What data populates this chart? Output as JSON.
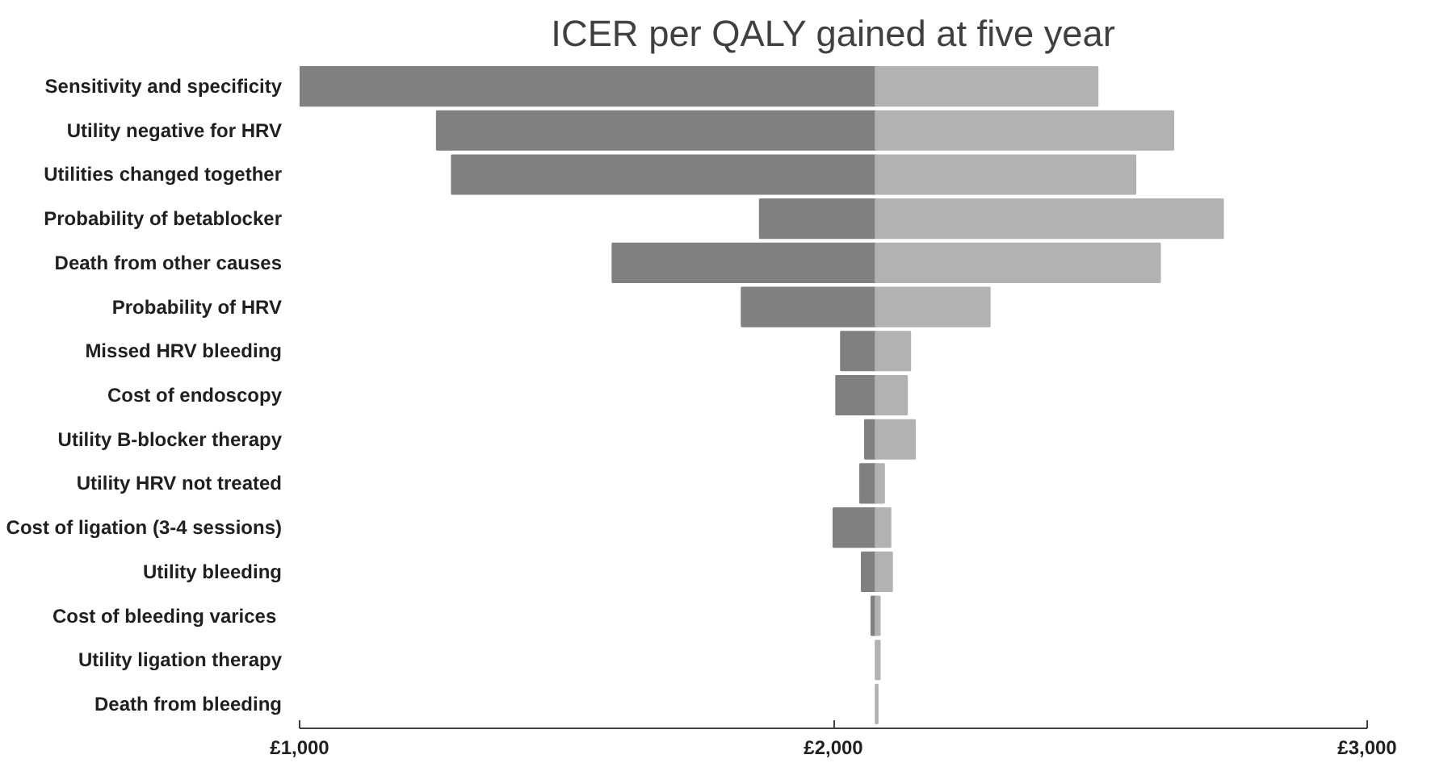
{
  "chart_data": {
    "type": "bar",
    "orientation": "horizontal",
    "title": "ICER per QALY gained at five year",
    "categories": [
      "Sensitivity and specificity",
      "Utility negative for HRV",
      "Utilities changed together",
      "Probability of betablocker",
      "Death from other causes",
      "Probability of HRV",
      "Missed HRV bleeding",
      "Cost of endoscopy",
      "Utility B-blocker therapy",
      "Utility HRV not treated",
      "Cost of ligation (3-4 sessions)",
      "Utility bleeding",
      "Cost of bleeding  varices",
      "Utility ligation therapy",
      "Death from bleeding"
    ],
    "series": [
      {
        "color": "#808080",
        "base": [
          1000,
          1257,
          1285,
          1862,
          1586,
          1828,
          2014,
          2005,
          2059,
          2050,
          2000,
          2053,
          2071,
          null,
          null
        ],
        "values": [
          1079,
          822,
          794,
          217,
          493,
          251,
          65,
          74,
          20,
          29,
          79,
          26,
          8,
          null,
          null
        ]
      },
      {
        "color": "#b2b2b2",
        "base": [
          2079,
          2079,
          2079,
          2079,
          2079,
          2079,
          2079,
          2079,
          2079,
          2079,
          2079,
          2079,
          2079,
          2079,
          2079
        ],
        "values": [
          416,
          558,
          487,
          651,
          533,
          214,
          65,
          59,
          74,
          16,
          28,
          31,
          8,
          8,
          4
        ]
      }
    ],
    "xlim": [
      1000,
      3000
    ],
    "xticks": [
      {
        "value": 1000,
        "label": "£1,000"
      },
      {
        "value": 2000,
        "label": "£2,000"
      },
      {
        "value": 3000,
        "label": "£3,000"
      }
    ],
    "grid": false
  }
}
